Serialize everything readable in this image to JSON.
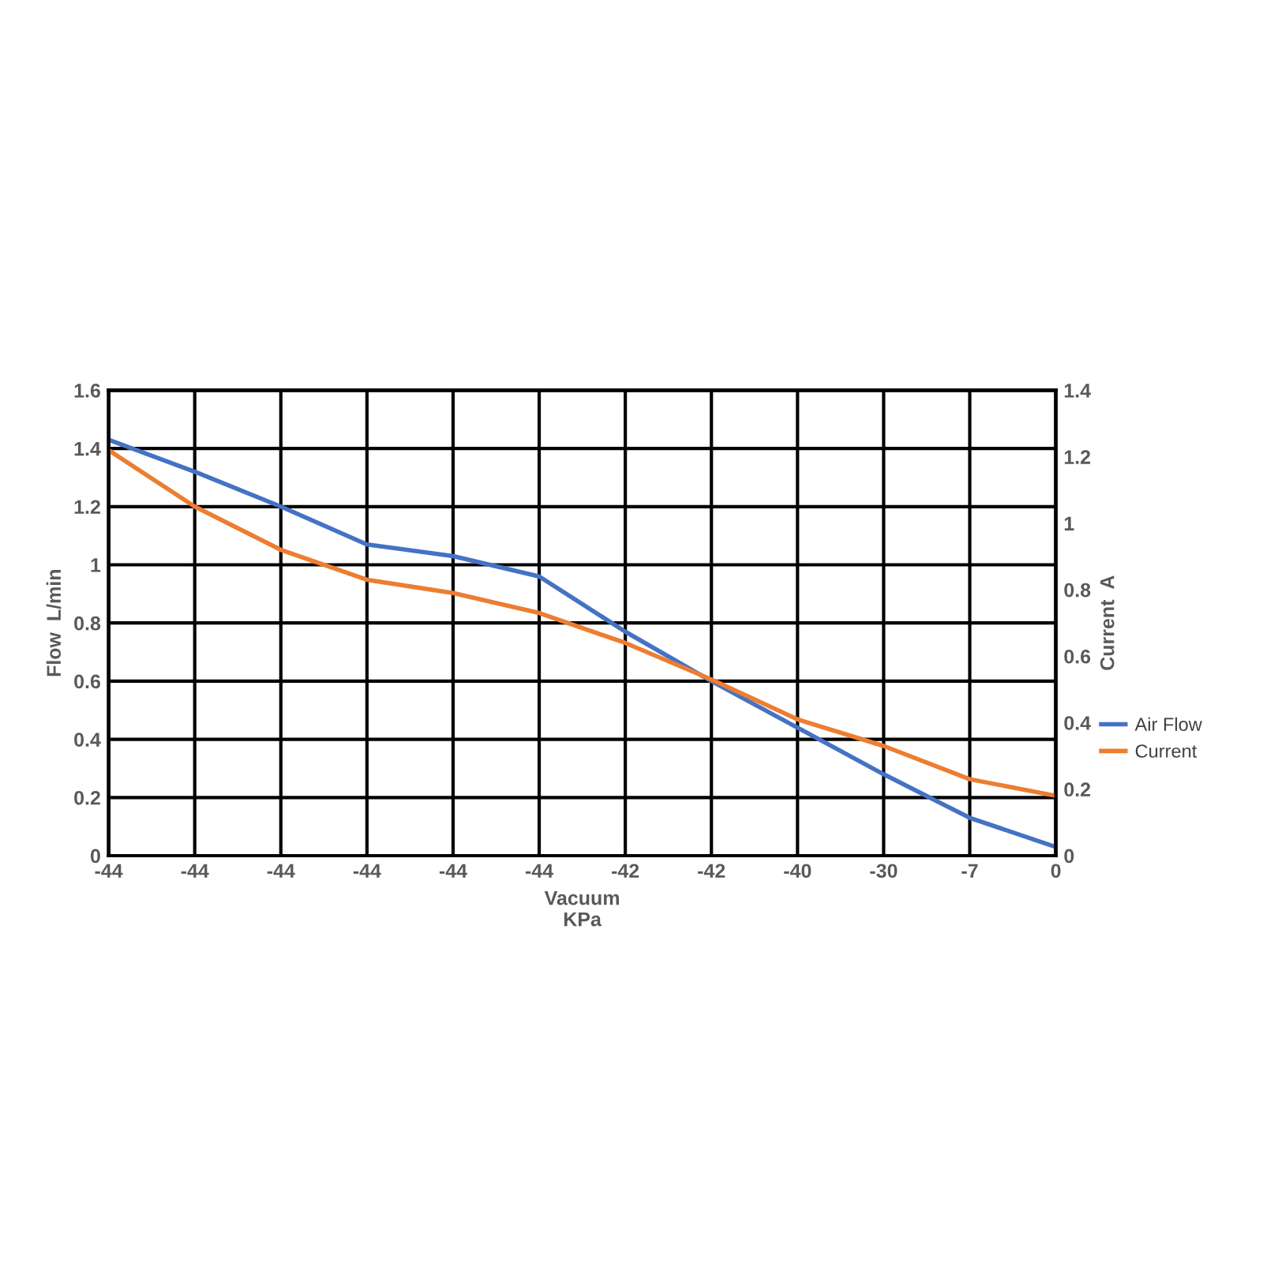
{
  "chart_data": {
    "type": "line",
    "xlabel": "Vacuum\nKPa",
    "ylabel": "Flow  L/min",
    "y2label": "Current  A",
    "categories": [
      "-44",
      "-44",
      "-44",
      "-44",
      "-44",
      "-44",
      "-42",
      "-42",
      "-40",
      "-30",
      "-7",
      "0"
    ],
    "series": [
      {
        "name": "Air Flow",
        "color": "#4472c4",
        "values": [
          1.43,
          1.32,
          1.2,
          1.07,
          1.03,
          0.96,
          0.77,
          0.6,
          0.44,
          0.28,
          0.13,
          0.03
        ]
      },
      {
        "name": "Current",
        "color": "#ed7d31",
        "axis": "y2",
        "values": [
          1.22,
          1.05,
          0.92,
          0.83,
          0.79,
          0.73,
          0.64,
          0.53,
          0.41,
          0.33,
          0.23,
          0.18
        ]
      }
    ],
    "ylim": [
      0,
      1.6
    ],
    "yticks": [
      0,
      0.2,
      0.4,
      0.6,
      0.8,
      1,
      1.2,
      1.4,
      1.6
    ],
    "y2lim": [
      0,
      1.4
    ],
    "y2ticks": [
      0,
      0.2,
      0.4,
      0.6,
      0.8,
      1,
      1.2,
      1.4
    ],
    "grid": true,
    "legend": "right",
    "marker": "none",
    "line_style": "solid"
  }
}
